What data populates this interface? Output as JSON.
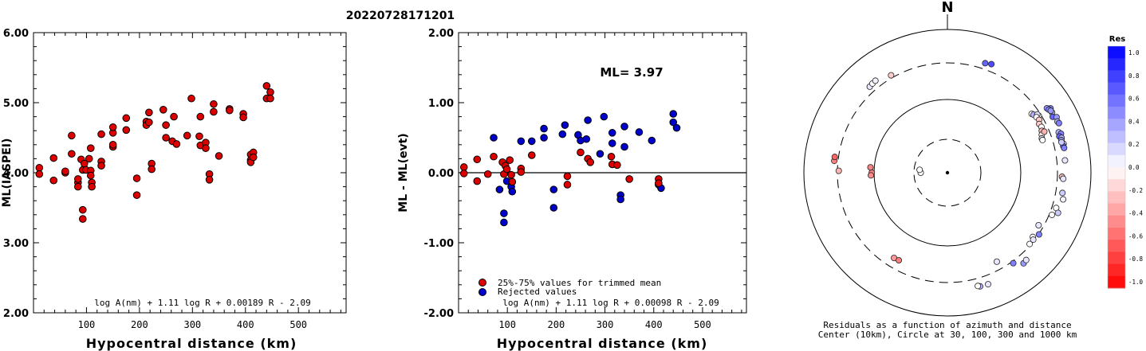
{
  "figure_title": "20220728171201",
  "chart_data": [
    {
      "type": "scatter",
      "xlabel": "Hypocentral distance (km)",
      "ylabel": "ML(IASPEI)",
      "xlim": [
        0,
        590
      ],
      "ylim": [
        2.0,
        6.0
      ],
      "x_ticks": [
        100,
        200,
        300,
        400,
        500
      ],
      "y_ticks": [
        "2.00",
        "3.00",
        "4.00",
        "5.00",
        "6.00"
      ],
      "formula": "log A(nm) + 1.11 log R + 0.00189 R - 2.09",
      "points": [
        [
          11,
          4.07
        ],
        [
          11,
          3.98
        ],
        [
          38,
          3.89
        ],
        [
          38,
          4.21
        ],
        [
          60,
          4.0
        ],
        [
          60,
          4.02
        ],
        [
          72,
          4.27
        ],
        [
          72,
          4.53
        ],
        [
          84,
          3.86
        ],
        [
          84,
          3.8
        ],
        [
          84,
          3.91
        ],
        [
          90,
          4.19
        ],
        [
          93,
          4.04
        ],
        [
          93,
          3.47
        ],
        [
          93,
          3.34
        ],
        [
          96,
          4.13
        ],
        [
          99,
          4.04
        ],
        [
          105,
          4.2
        ],
        [
          108,
          4.35
        ],
        [
          108,
          4.03
        ],
        [
          108,
          3.96
        ],
        [
          110,
          3.86
        ],
        [
          110,
          3.8
        ],
        [
          128,
          4.16
        ],
        [
          128,
          4.1
        ],
        [
          128,
          4.55
        ],
        [
          150,
          4.57
        ],
        [
          150,
          4.65
        ],
        [
          150,
          4.37
        ],
        [
          150,
          4.4
        ],
        [
          175,
          4.78
        ],
        [
          175,
          4.61
        ],
        [
          195,
          3.92
        ],
        [
          195,
          3.68
        ],
        [
          213,
          4.73
        ],
        [
          213,
          4.68
        ],
        [
          218,
          4.86
        ],
        [
          218,
          4.72
        ],
        [
          223,
          4.13
        ],
        [
          223,
          4.05
        ],
        [
          245,
          4.9
        ],
        [
          250,
          4.5
        ],
        [
          250,
          4.68
        ],
        [
          262,
          4.45
        ],
        [
          265,
          4.8
        ],
        [
          270,
          4.41
        ],
        [
          290,
          4.53
        ],
        [
          298,
          5.06
        ],
        [
          313,
          4.52
        ],
        [
          315,
          4.39
        ],
        [
          315,
          4.8
        ],
        [
          325,
          4.43
        ],
        [
          325,
          4.35
        ],
        [
          332,
          3.98
        ],
        [
          332,
          3.9
        ],
        [
          340,
          4.98
        ],
        [
          340,
          4.87
        ],
        [
          350,
          4.24
        ],
        [
          370,
          4.91
        ],
        [
          370,
          4.89
        ],
        [
          396,
          4.84
        ],
        [
          396,
          4.79
        ],
        [
          410,
          4.26
        ],
        [
          410,
          4.18
        ],
        [
          410,
          4.15
        ],
        [
          415,
          4.29
        ],
        [
          415,
          4.22
        ],
        [
          440,
          5.24
        ],
        [
          440,
          5.06
        ],
        [
          447,
          5.15
        ],
        [
          447,
          5.06
        ]
      ]
    },
    {
      "type": "scatter",
      "xlabel": "Hypocentral distance (km)",
      "ylabel": "ML - ML(evt)",
      "xlim": [
        0,
        590
      ],
      "ylim": [
        -2.0,
        2.0
      ],
      "x_ticks": [
        100,
        200,
        300,
        400,
        500
      ],
      "y_ticks": [
        "-2.00",
        "-1.00",
        "0.00",
        "1.00",
        "2.00"
      ],
      "annotation": "ML= 3.97",
      "formula": "log A(nm) + 1.11 log R + 0.00098 R - 2.09",
      "legend": [
        {
          "label": "25%-75% values for trimmed mean",
          "color": "#dd0000"
        },
        {
          "label": "Rejected values",
          "color": "#0000cc"
        }
      ],
      "legend_position": "bottom-left",
      "points_trimmed": [
        [
          11,
          0.08
        ],
        [
          11,
          -0.01
        ],
        [
          38,
          0.19
        ],
        [
          38,
          -0.12
        ],
        [
          60,
          -0.02
        ],
        [
          72,
          0.23
        ],
        [
          90,
          0.15
        ],
        [
          93,
          -0.02
        ],
        [
          96,
          0.1
        ],
        [
          99,
          0.05
        ],
        [
          105,
          0.18
        ],
        [
          108,
          -0.03
        ],
        [
          110,
          -0.13
        ],
        [
          128,
          0.06
        ],
        [
          128,
          0.01
        ],
        [
          150,
          0.25
        ],
        [
          223,
          -0.05
        ],
        [
          223,
          -0.17
        ],
        [
          250,
          0.29
        ],
        [
          265,
          0.2
        ],
        [
          270,
          0.15
        ],
        [
          313,
          0.23
        ],
        [
          315,
          0.12
        ],
        [
          325,
          0.11
        ],
        [
          350,
          -0.09
        ],
        [
          410,
          -0.09
        ],
        [
          410,
          -0.15
        ]
      ],
      "points_rejected": [
        [
          72,
          0.5
        ],
        [
          84,
          -0.24
        ],
        [
          93,
          -0.58
        ],
        [
          93,
          -0.71
        ],
        [
          99,
          -0.12
        ],
        [
          108,
          -0.2
        ],
        [
          110,
          -0.27
        ],
        [
          128,
          0.45
        ],
        [
          150,
          0.45
        ],
        [
          175,
          0.5
        ],
        [
          175,
          0.63
        ],
        [
          195,
          -0.24
        ],
        [
          195,
          -0.5
        ],
        [
          213,
          0.55
        ],
        [
          218,
          0.68
        ],
        [
          245,
          0.54
        ],
        [
          250,
          0.46
        ],
        [
          262,
          0.48
        ],
        [
          265,
          0.75
        ],
        [
          290,
          0.27
        ],
        [
          298,
          0.8
        ],
        [
          315,
          0.57
        ],
        [
          315,
          0.42
        ],
        [
          332,
          -0.32
        ],
        [
          332,
          -0.38
        ],
        [
          340,
          0.66
        ],
        [
          340,
          0.37
        ],
        [
          370,
          0.58
        ],
        [
          396,
          0.46
        ],
        [
          410,
          -0.17
        ],
        [
          415,
          -0.22
        ],
        [
          440,
          0.84
        ],
        [
          440,
          0.72
        ],
        [
          447,
          0.64
        ]
      ]
    },
    {
      "type": "scatter",
      "subtype": "polar",
      "north_label": "N",
      "caption_line1": "Residuals as a function of azimuth and distance",
      "caption_line2": "Center (10km), Circle at 30, 100, 300 and 1000 km",
      "colorbar_title": "Res",
      "colorbar_ticks": [
        "1.0",
        "0.8",
        "0.6",
        "0.4",
        "0.2",
        "0.0",
        "-0.2",
        "-0.4",
        "-0.6",
        "-0.8",
        "-1.0"
      ],
      "rings_km": [
        30,
        100,
        300,
        1000
      ],
      "points_az_dist_res": [
        [
          270,
          24,
          0.0
        ],
        [
          276,
          25,
          0.0
        ],
        [
          270,
          107,
          -0.5
        ],
        [
          274,
          112,
          -0.5
        ],
        [
          268,
          110,
          -0.45
        ],
        [
          276,
          343,
          -0.5
        ],
        [
          278,
          343,
          -0.6
        ],
        [
          271,
          288,
          -0.3
        ],
        [
          318,
          372,
          0.1
        ],
        [
          320,
          380,
          0.0
        ],
        [
          322,
          385,
          0.05
        ],
        [
          330,
          330,
          -0.2
        ],
        [
          22,
          390,
          0.7
        ],
        [
          19,
          372,
          0.6
        ],
        [
          55,
          242,
          0.0
        ],
        [
          56,
          250,
          0.3
        ],
        [
          58,
          280,
          0.0
        ],
        [
          57,
          275,
          0.1
        ],
        [
          58,
          258,
          0.0
        ],
        [
          60,
          265,
          -0.2
        ],
        [
          62,
          250,
          -0.2
        ],
        [
          64,
          255,
          0.0
        ],
        [
          66,
          245,
          -0.3
        ],
        [
          68,
          234,
          -0.1
        ],
        [
          67,
          260,
          -0.3
        ],
        [
          70,
          225,
          0.1
        ],
        [
          71,
          226,
          0.0
        ],
        [
          60,
          442,
          0.3
        ],
        [
          62,
          418,
          0.6
        ],
        [
          63,
          470,
          0.4
        ],
        [
          58,
          455,
          0.5
        ],
        [
          65,
          451,
          0.3
        ],
        [
          66,
          462,
          0.5
        ],
        [
          57,
          408,
          0.4
        ],
        [
          58,
          420,
          0.5
        ],
        [
          59,
          437,
          0.4
        ],
        [
          70,
          405,
          0.3
        ],
        [
          71,
          430,
          0.5
        ],
        [
          72,
          395,
          0.6
        ],
        [
          73,
          420,
          0.3
        ],
        [
          74,
          407,
          0.4
        ],
        [
          76,
          425,
          0.2
        ],
        [
          77,
          412,
          0.6
        ],
        [
          75,
          400,
          0.2
        ],
        [
          78,
          418,
          0.5
        ],
        [
          84,
          402,
          0.1
        ],
        [
          92,
          354,
          -0.3
        ],
        [
          93,
          371,
          0.1
        ],
        [
          100,
          382,
          0.2
        ],
        [
          108,
          350,
          0.0
        ],
        [
          103,
          410,
          0.05
        ],
        [
          110,
          395,
          0.2
        ],
        [
          112,
          330,
          0.0
        ],
        [
          120,
          260,
          0.1
        ],
        [
          124,
          305,
          0.5
        ],
        [
          127,
          273,
          0.0
        ],
        [
          128,
          290,
          0.1
        ],
        [
          131,
          290,
          0.0
        ],
        [
          144,
          322,
          0.5
        ],
        [
          140,
          406,
          0.4
        ],
        [
          138,
          395,
          0.1
        ],
        [
          151,
          235,
          0.1
        ],
        [
          164,
          406,
          0.3
        ],
        [
          165,
          392,
          0.0
        ],
        [
          160,
          412,
          0.1
        ],
        [
          212,
          227,
          -0.4
        ],
        [
          209,
          224,
          -0.5
        ]
      ]
    }
  ]
}
